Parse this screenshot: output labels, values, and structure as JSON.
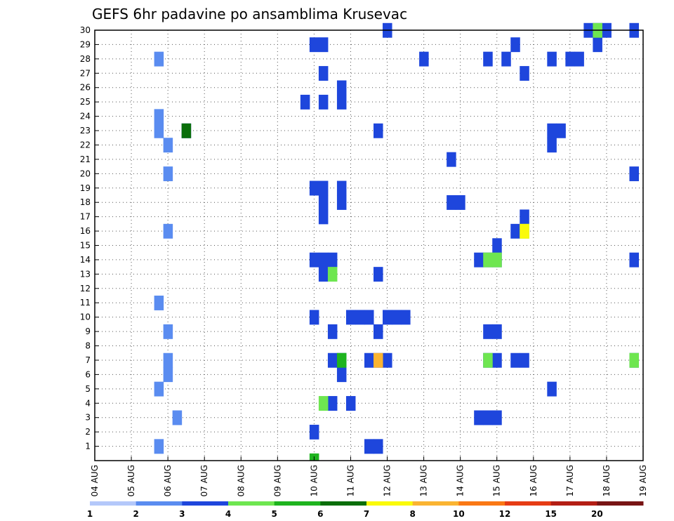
{
  "chart_data": {
    "type": "heatmap",
    "title": "GEFS 6hr padavine po ansamblima Krusevac",
    "x_ticks": [
      "04 AUG",
      "05 AUG",
      "06 AUG",
      "07 AUG",
      "08 AUG",
      "09 AUG",
      "10 AUG",
      "11 AUG",
      "12 AUG",
      "13 AUG",
      "14 AUG",
      "15 AUG",
      "16 AUG",
      "17 AUG",
      "18 AUG",
      "19 AUG"
    ],
    "xlim": [
      "04 AUG 00Z",
      "19 AUG 00Z"
    ],
    "y_ticks": [
      "1",
      "2",
      "3",
      "4",
      "5",
      "6",
      "7",
      "8",
      "9",
      "10",
      "11",
      "12",
      "13",
      "14",
      "15",
      "16",
      "17",
      "18",
      "19",
      "20",
      "21",
      "22",
      "23",
      "24",
      "25",
      "26",
      "27",
      "28",
      "29",
      "30"
    ],
    "ylim": [
      0,
      30
    ],
    "grid": true,
    "colorbar": {
      "labels": [
        "1",
        "2",
        "3",
        "4",
        "5",
        "6",
        "7",
        "8",
        "10",
        "12",
        "15",
        "20"
      ],
      "colors": [
        "#b4c8fa",
        "#5a8cf0",
        "#1e46dc",
        "#6ee650",
        "#1eb41e",
        "#0a6e0a",
        "#fafa0a",
        "#fab432",
        "#fa7814",
        "#e63c14",
        "#b41e14",
        "#781414"
      ]
    },
    "value_note": "cells: member (y), day offset from 04 AUG 00Z (x, 6-hourly), colorbar class index 1-12",
    "cells": [
      [
        2,
        1.75,
        1
      ],
      [
        2,
        1.75,
        5
      ],
      [
        2,
        1.75,
        11
      ],
      [
        2,
        1.75,
        23
      ],
      [
        2,
        1.75,
        24
      ],
      [
        2,
        1.75,
        28
      ],
      [
        2,
        2.0,
        6
      ],
      [
        2,
        2.0,
        7
      ],
      [
        2,
        2.0,
        9
      ],
      [
        2,
        2.0,
        16
      ],
      [
        2,
        2.0,
        20
      ],
      [
        2,
        2.0,
        22
      ],
      [
        2,
        2.25,
        3
      ],
      [
        3,
        2.5,
        23
      ],
      [
        3,
        6.0,
        10
      ],
      [
        3,
        6.0,
        14
      ],
      [
        3,
        6.25,
        13
      ],
      [
        3,
        6.25,
        14
      ],
      [
        3,
        6.25,
        17
      ],
      [
        3,
        6.25,
        18
      ],
      [
        3,
        6.25,
        19
      ],
      [
        3,
        6.25,
        25
      ],
      [
        3,
        6.25,
        27
      ],
      [
        3,
        6.25,
        29
      ],
      [
        3,
        6.0,
        29
      ],
      [
        3,
        5.75,
        25
      ],
      [
        3,
        6.0,
        2
      ],
      [
        3,
        6.0,
        19
      ],
      [
        3,
        6.5,
        14
      ],
      [
        3,
        6.5,
        7
      ],
      [
        3,
        6.5,
        4
      ],
      [
        3,
        6.5,
        9
      ],
      [
        3,
        6.75,
        25
      ],
      [
        3,
        6.75,
        26
      ],
      [
        3,
        6.75,
        18
      ],
      [
        3,
        6.75,
        19
      ],
      [
        3,
        6.75,
        6
      ],
      [
        3,
        6.75,
        7
      ],
      [
        3,
        7.0,
        10
      ],
      [
        3,
        7.0,
        4
      ],
      [
        3,
        7.25,
        10
      ],
      [
        3,
        7.5,
        10
      ],
      [
        3,
        7.5,
        7
      ],
      [
        3,
        7.75,
        7
      ],
      [
        3,
        7.75,
        1
      ],
      [
        3,
        7.5,
        1
      ],
      [
        3,
        7.75,
        9
      ],
      [
        3,
        7.75,
        13
      ],
      [
        3,
        7.75,
        23
      ],
      [
        3,
        8.0,
        7
      ],
      [
        3,
        8.0,
        30
      ],
      [
        3,
        8.0,
        10
      ],
      [
        3,
        8.25,
        10
      ],
      [
        3,
        8.5,
        10
      ],
      [
        3,
        9.0,
        28
      ],
      [
        3,
        9.75,
        21
      ],
      [
        3,
        9.75,
        18
      ],
      [
        3,
        10.0,
        18
      ],
      [
        3,
        10.5,
        3
      ],
      [
        3,
        10.5,
        14
      ],
      [
        3,
        10.75,
        3
      ],
      [
        3,
        10.75,
        9
      ],
      [
        3,
        10.75,
        14
      ],
      [
        3,
        10.75,
        28
      ],
      [
        3,
        10.75,
        7
      ],
      [
        3,
        11.0,
        7
      ],
      [
        3,
        11.0,
        3
      ],
      [
        3,
        11.0,
        14
      ],
      [
        3,
        11.0,
        9
      ],
      [
        3,
        11.0,
        15
      ],
      [
        3,
        11.25,
        28
      ],
      [
        3,
        11.5,
        29
      ],
      [
        3,
        11.5,
        7
      ],
      [
        3,
        11.75,
        7
      ],
      [
        3,
        11.75,
        27
      ],
      [
        3,
        11.5,
        16
      ],
      [
        3,
        11.75,
        17
      ],
      [
        3,
        12.5,
        22
      ],
      [
        3,
        12.5,
        23
      ],
      [
        3,
        12.5,
        5
      ],
      [
        3,
        12.5,
        28
      ],
      [
        3,
        12.75,
        23
      ],
      [
        3,
        13.0,
        28
      ],
      [
        3,
        13.25,
        28
      ],
      [
        3,
        13.5,
        30
      ],
      [
        3,
        13.75,
        30
      ],
      [
        3,
        14.0,
        30
      ],
      [
        3,
        13.75,
        29
      ],
      [
        3,
        14.75,
        30
      ],
      [
        3,
        14.75,
        14
      ],
      [
        3,
        14.75,
        7
      ],
      [
        3,
        14.75,
        20
      ],
      [
        4,
        6.5,
        13
      ],
      [
        4,
        6.25,
        4
      ],
      [
        4,
        10.75,
        7
      ],
      [
        4,
        10.75,
        14
      ],
      [
        4,
        11.0,
        14
      ],
      [
        4,
        11.75,
        16
      ],
      [
        4,
        13.75,
        30
      ],
      [
        4,
        14.75,
        7
      ],
      [
        5,
        6.75,
        7
      ],
      [
        5,
        6.0,
        0
      ],
      [
        6,
        2.5,
        23
      ],
      [
        7,
        11.75,
        16
      ],
      [
        8,
        7.75,
        7
      ]
    ]
  }
}
